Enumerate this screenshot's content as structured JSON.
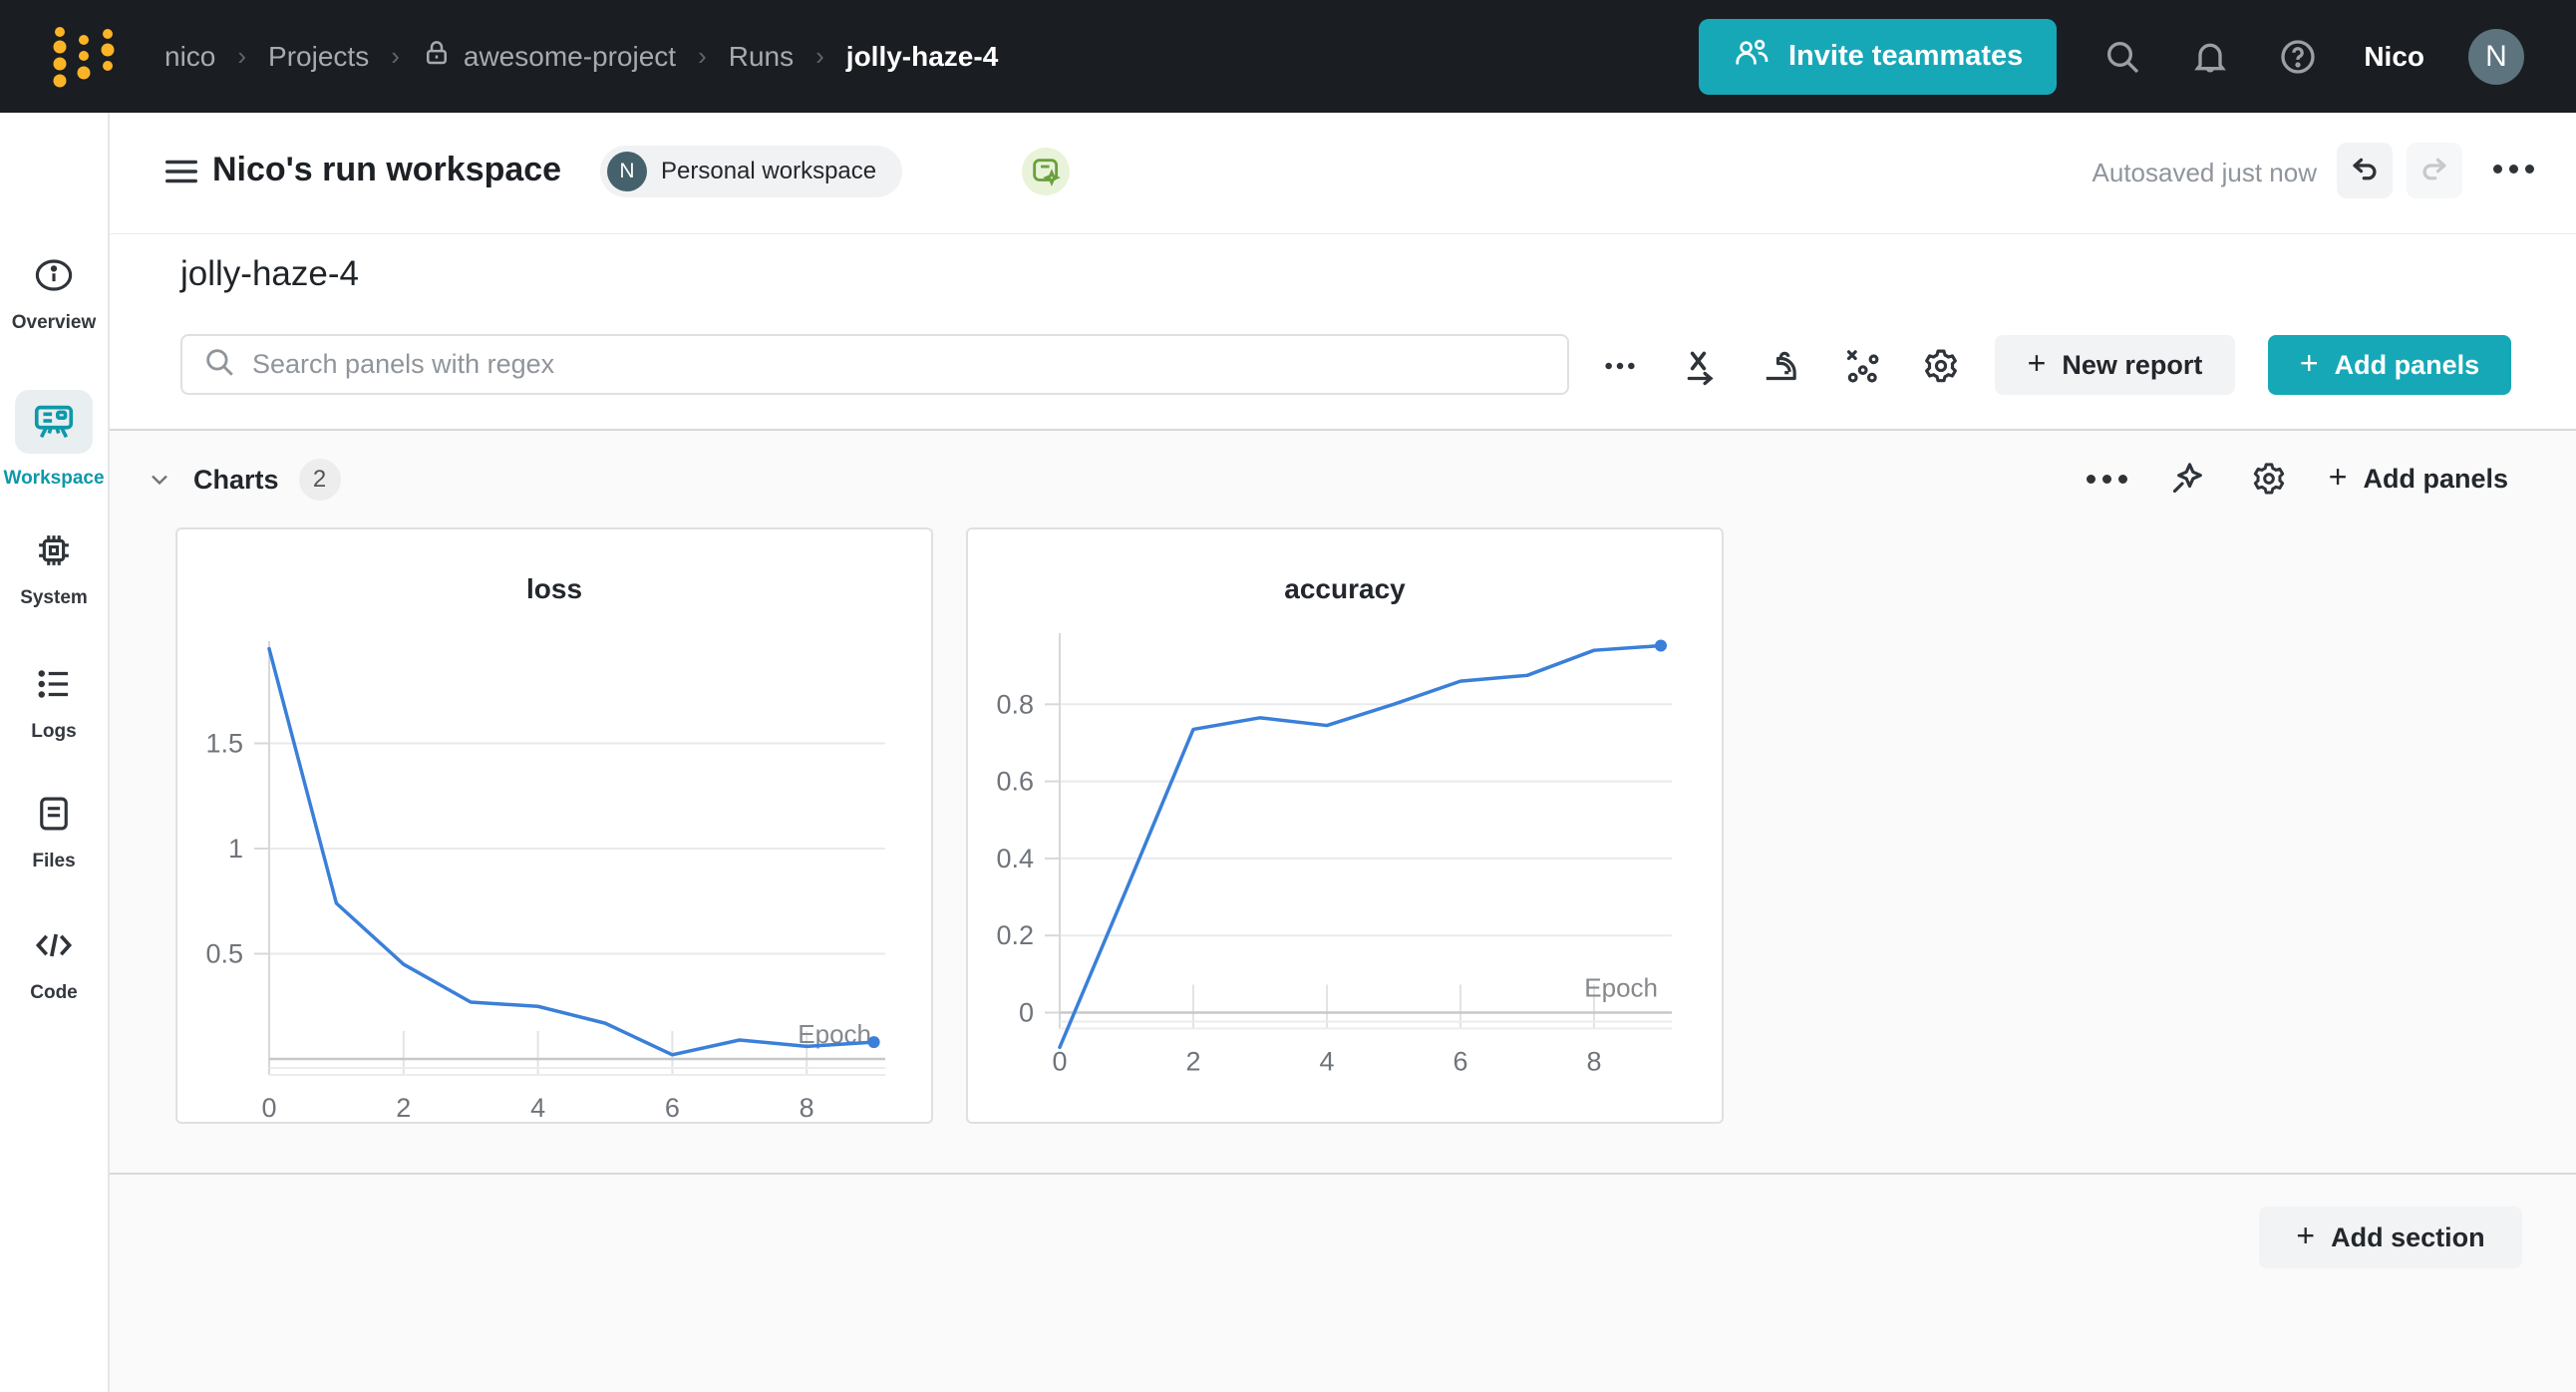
{
  "nav": {
    "breadcrumbs": [
      {
        "label": "nico"
      },
      {
        "label": "Projects"
      },
      {
        "label": "awesome-project"
      },
      {
        "label": "Runs"
      },
      {
        "label": "jolly-haze-4"
      }
    ],
    "invite_button_label": "Invite teammates",
    "username": "Nico",
    "avatar_initial": "N"
  },
  "sidebar": {
    "items": [
      {
        "label": "Overview"
      },
      {
        "label": "Workspace",
        "active": true
      },
      {
        "label": "System"
      },
      {
        "label": "Logs"
      },
      {
        "label": "Files"
      },
      {
        "label": "Code"
      }
    ]
  },
  "workspace_header": {
    "title": "Nico's run workspace",
    "badge_initial": "N",
    "badge_label": "Personal workspace",
    "autosave_status": "Autosaved just now"
  },
  "run": {
    "title": "jolly-haze-4"
  },
  "panel_bar": {
    "search_placeholder": "Search panels with regex",
    "new_report_label": "New report",
    "add_panels_label": "Add panels"
  },
  "charts_section": {
    "title": "Charts",
    "count": "2",
    "add_panels_label": "Add panels"
  },
  "footer": {
    "add_section_label": "Add section"
  },
  "colors": {
    "navbar_bg": "#1a1d21",
    "brand_teal": "#17a8b8",
    "sidebar_active_teal": "#0e98a9",
    "logo_yellow": "#fcb427",
    "chart_line_blue": "#3a7fd9"
  },
  "chart_data": [
    {
      "type": "line",
      "title": "loss",
      "xlabel": "Epoch",
      "x": [
        0,
        1,
        2,
        3,
        4,
        5,
        6,
        7,
        8,
        9
      ],
      "values": [
        1.95,
        0.74,
        0.45,
        0.27,
        0.25,
        0.17,
        0.02,
        0.09,
        0.06,
        0.08
      ],
      "xticks": [
        0,
        2,
        4,
        6,
        8
      ],
      "yticks": [
        {
          "v": 0.5,
          "label": "0.5"
        },
        {
          "v": 1,
          "label": "1"
        },
        {
          "v": 1.5,
          "label": "1.5"
        }
      ],
      "xlim": [
        0,
        9
      ],
      "ylim": [
        0,
        1.95
      ],
      "grid": true,
      "legend": "none",
      "color": "#3a7fd9",
      "geom": {
        "x0": 92,
        "dx": 67.4,
        "ybase": 531,
        "yscale": 211,
        "ytop": 112,
        "xright": 710
      }
    },
    {
      "type": "line",
      "title": "accuracy",
      "xlabel": "Epoch",
      "x": [
        0,
        1,
        2,
        3,
        4,
        5,
        6,
        7,
        8,
        9
      ],
      "values": [
        -0.09,
        0.32,
        0.735,
        0.765,
        0.745,
        0.8,
        0.86,
        0.875,
        0.94,
        0.952
      ],
      "xticks": [
        0,
        2,
        4,
        6,
        8
      ],
      "yticks": [
        {
          "v": 0,
          "label": "0"
        },
        {
          "v": 0.2,
          "label": "0.2"
        },
        {
          "v": 0.4,
          "label": "0.4"
        },
        {
          "v": 0.6,
          "label": "0.6"
        },
        {
          "v": 0.8,
          "label": "0.8"
        }
      ],
      "xlim": [
        0,
        9
      ],
      "ylim": [
        -0.09,
        0.96
      ],
      "grid": true,
      "legend": "none",
      "color": "#3a7fd9",
      "geom": {
        "x0": 92,
        "dx": 67,
        "ybase": 484.5,
        "yscale": 386.5,
        "ytop": 104,
        "xright": 706
      }
    }
  ]
}
